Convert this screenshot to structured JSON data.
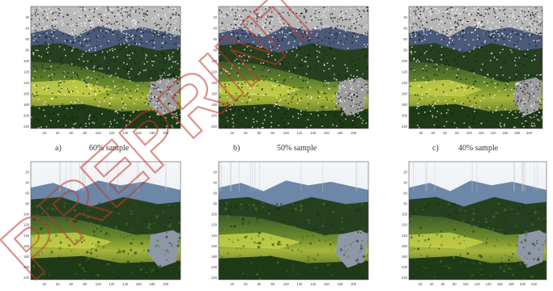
{
  "figure": {
    "top_row": [
      {
        "letter": "a)",
        "label": "60% sample",
        "mode": "noisy"
      },
      {
        "letter": "b)",
        "label": "50% sample",
        "mode": "noisy"
      },
      {
        "letter": "c)",
        "label": "40% sample",
        "mode": "noisy"
      }
    ],
    "bottom_row": [
      {
        "mode": "restored"
      },
      {
        "mode": "restored"
      },
      {
        "mode": "restored"
      }
    ],
    "y_ticks": [
      "20",
      "40",
      "60",
      "80",
      "100",
      "120",
      "140",
      "160",
      "180",
      "200",
      "220"
    ],
    "x_ticks_short": [
      "20",
      "40",
      "60",
      "80",
      "100",
      "120",
      "140",
      "160",
      "180",
      "200"
    ],
    "x_ticks_long": [
      "20",
      "40",
      "60",
      "80",
      "100",
      "120",
      "140",
      "160",
      "180",
      "200",
      "220"
    ]
  },
  "watermark": {
    "text": "PREPRINT",
    "color": "#c0392b"
  }
}
